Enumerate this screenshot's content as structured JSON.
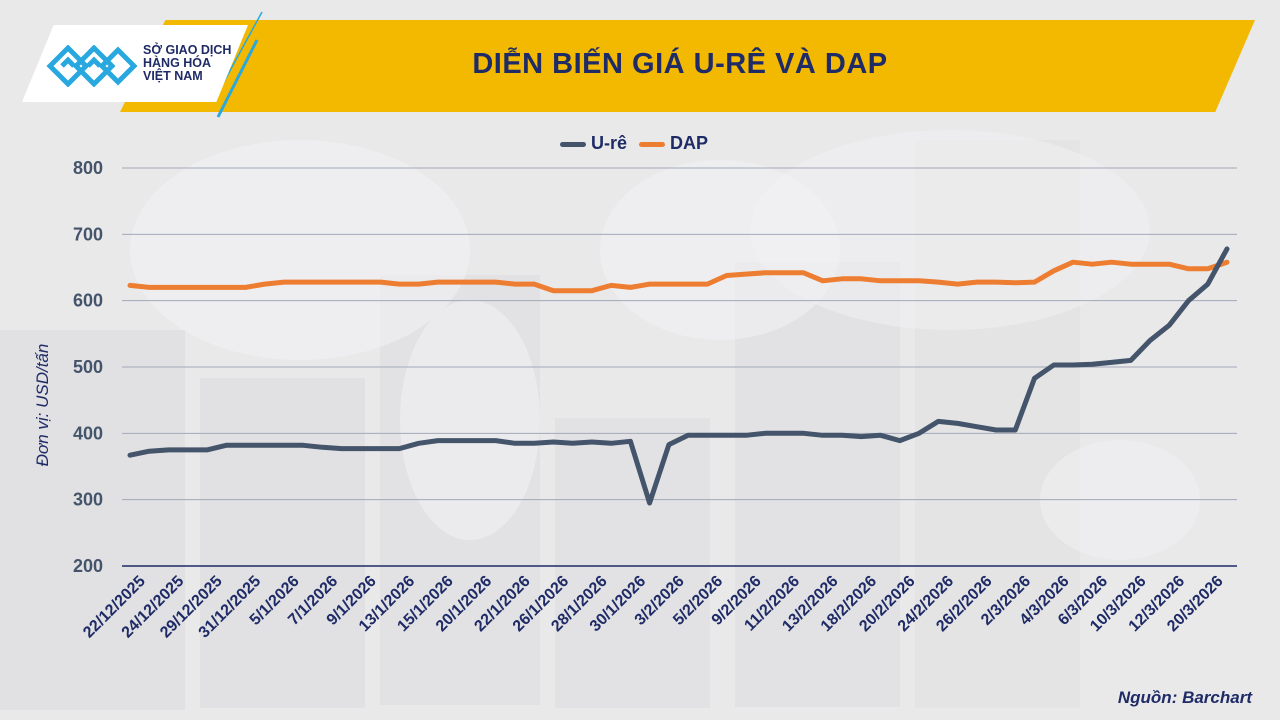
{
  "header": {
    "title": "DIỄN BIẾN GIÁ U-RÊ VÀ DAP",
    "logo_text": [
      "SỞ GIAO DỊCH",
      "HÀNG HÓA",
      "VIỆT NAM"
    ]
  },
  "source": "Nguồn: Barchart",
  "chart_data": {
    "type": "line",
    "title": "DIỄN BIẾN GIÁ U-RÊ VÀ DAP",
    "ylabel": "Đơn vị: USD/tấn",
    "xlabel": "",
    "ylim": [
      200,
      800
    ],
    "yticks": [
      200,
      300,
      400,
      500,
      600,
      700,
      800
    ],
    "grid": true,
    "legend": "top",
    "x_tick_labels": [
      "22/12/2025",
      "24/12/2025",
      "29/12/2025",
      "31/12/2025",
      "5/1/2026",
      "7/1/2026",
      "9/1/2026",
      "13/1/2026",
      "15/1/2026",
      "20/1/2026",
      "22/1/2026",
      "26/1/2026",
      "28/1/2026",
      "30/1/2026",
      "3/2/2026",
      "5/2/2026",
      "9/2/2026",
      "11/2/2026",
      "13/2/2026",
      "18/2/2026",
      "20/2/2026",
      "24/2/2026",
      "26/2/2026",
      "2/3/2026",
      "4/3/2026",
      "6/3/2026",
      "10/3/2026",
      "12/3/2026",
      "20/3/2026"
    ],
    "series": [
      {
        "name": "U-rê",
        "color": "#44546a",
        "values": [
          367,
          373,
          375,
          375,
          375,
          382,
          382,
          382,
          382,
          382,
          379,
          377,
          377,
          377,
          377,
          385,
          389,
          389,
          389,
          389,
          385,
          385,
          387,
          385,
          387,
          385,
          388,
          295,
          383,
          397,
          397,
          397,
          397,
          400,
          400,
          400,
          397,
          397,
          395,
          397,
          389,
          400,
          418,
          415,
          410,
          405,
          405,
          483,
          503,
          503,
          504,
          507,
          510,
          540,
          563,
          600,
          625,
          678
        ]
      },
      {
        "name": "DAP",
        "color": "#ed7d31",
        "values": [
          623,
          620,
          620,
          620,
          620,
          620,
          620,
          625,
          628,
          628,
          628,
          628,
          628,
          628,
          625,
          625,
          628,
          628,
          628,
          628,
          625,
          625,
          615,
          615,
          615,
          623,
          620,
          625,
          625,
          625,
          625,
          638,
          640,
          642,
          642,
          642,
          630,
          633,
          633,
          630,
          630,
          630,
          628,
          625,
          628,
          628,
          627,
          628,
          645,
          658,
          655,
          658,
          655,
          655,
          655,
          648,
          648,
          658
        ]
      }
    ]
  }
}
